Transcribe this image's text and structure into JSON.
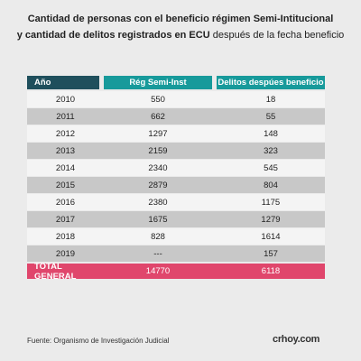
{
  "title": {
    "line1": "Cantidad de personas con el beneficio régimen Semi-Intitucional",
    "line2_bold": "y cantidad de delitos registrados en ECU",
    "line2_rest": "después de la fecha beneficio"
  },
  "table": {
    "header": [
      "Año",
      "Rég Semi-Inst",
      "Delitos despúes beneficio"
    ],
    "rows": [
      [
        2010,
        550,
        18
      ],
      [
        2011,
        662,
        55
      ],
      [
        2012,
        1297,
        148
      ],
      [
        2013,
        2159,
        323
      ],
      [
        2014,
        2340,
        545
      ],
      [
        2015,
        2879,
        804
      ],
      [
        2016,
        2380,
        1175
      ],
      [
        2017,
        1675,
        1279
      ],
      [
        2018,
        828,
        1614
      ],
      [
        2019,
        "---",
        157
      ]
    ],
    "total": [
      "TOTAL GENERAL",
      14770,
      6118
    ]
  },
  "footer": {
    "source": "Fuente: Organismo de Investigación Judicial",
    "logo": "crhoy.com"
  }
}
